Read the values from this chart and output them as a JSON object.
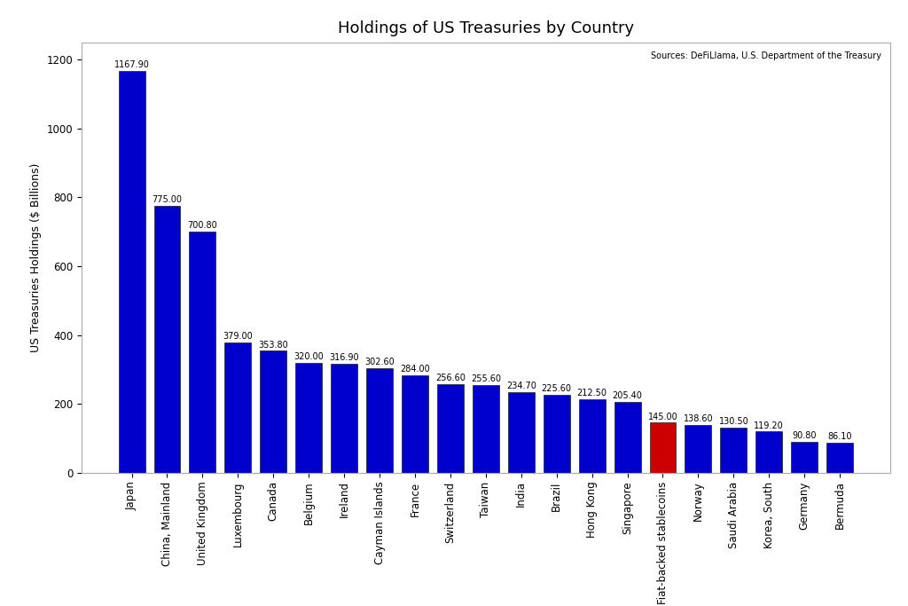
{
  "title": "Holdings of US Treasuries by Country",
  "ylabel": "US Treasuries Holdings ($ Billions)",
  "source_text": "Sources: DeFiLlama, U.S. Department of the Treasury",
  "categories": [
    "Japan",
    "China, Mainland",
    "United Kingdom",
    "Luxembourg",
    "Canada",
    "Belgium",
    "Ireland",
    "Cayman Islands",
    "France",
    "Switzerland",
    "Taiwan",
    "India",
    "Brazil",
    "Hong Kong",
    "Singapore",
    "Fiat-backed stablecoins",
    "Norway",
    "Saudi Arabia",
    "Korea, South",
    "Germany",
    "Bermuda"
  ],
  "values": [
    1167.9,
    775.0,
    700.8,
    379.0,
    353.8,
    320.0,
    316.9,
    302.6,
    284.0,
    256.6,
    255.6,
    234.7,
    225.6,
    212.5,
    205.4,
    145.0,
    138.6,
    130.5,
    119.2,
    90.8,
    86.1
  ],
  "bar_colors": [
    "#0000cc",
    "#0000cc",
    "#0000cc",
    "#0000cc",
    "#0000cc",
    "#0000cc",
    "#0000cc",
    "#0000cc",
    "#0000cc",
    "#0000cc",
    "#0000cc",
    "#0000cc",
    "#0000cc",
    "#0000cc",
    "#0000cc",
    "#cc0000",
    "#0000cc",
    "#0000cc",
    "#0000cc",
    "#0000cc",
    "#0000cc"
  ],
  "ylim": [
    0,
    1250
  ],
  "yticks": [
    0,
    200,
    400,
    600,
    800,
    1000,
    1200
  ],
  "background_color": "#ffffff",
  "bar_edge_color": "#000000",
  "title_fontsize": 13,
  "label_fontsize": 7,
  "tick_fontsize": 8.5,
  "ylabel_fontsize": 9,
  "source_fontsize": 7,
  "bar_width": 0.75
}
